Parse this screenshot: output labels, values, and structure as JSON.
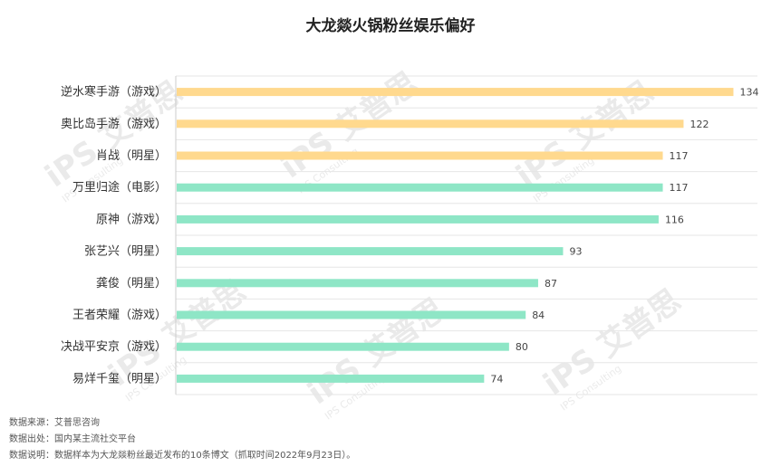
{
  "chart_data": {
    "type": "bar",
    "orientation": "horizontal",
    "title": "大龙燚火锅粉丝娱乐偏好",
    "categories": [
      "逆水寒手游（游戏）",
      "奥比岛手游（游戏）",
      "肖战（明星）",
      "万里归途（电影）",
      "原神（游戏）",
      "张艺兴（明星）",
      "龚俊（明星）",
      "王者荣耀（游戏）",
      "决战平安京（游戏）",
      "易烊千玺（明星）"
    ],
    "values": [
      134,
      122,
      117,
      117,
      116,
      93,
      87,
      84,
      80,
      74
    ],
    "bar_colors": [
      "#FFD98E",
      "#FFD98E",
      "#FFD98E",
      "#8EE6C6",
      "#8EE6C6",
      "#8EE6C6",
      "#8EE6C6",
      "#8EE6C6",
      "#8EE6C6",
      "#8EE6C6"
    ],
    "xlim": [
      0,
      140
    ],
    "grid": true,
    "legend": "none"
  },
  "footer": {
    "source": "数据来源：艾普思咨询",
    "origin": "数据出处：国内某主流社交平台",
    "note": "数据说明：数据样本为大龙燚粉丝最近发布的10条博文（抓取时间2022年9月23日）。"
  },
  "watermark": {
    "logo": "iPS 艾普思",
    "sub": "IPS Consulting"
  }
}
